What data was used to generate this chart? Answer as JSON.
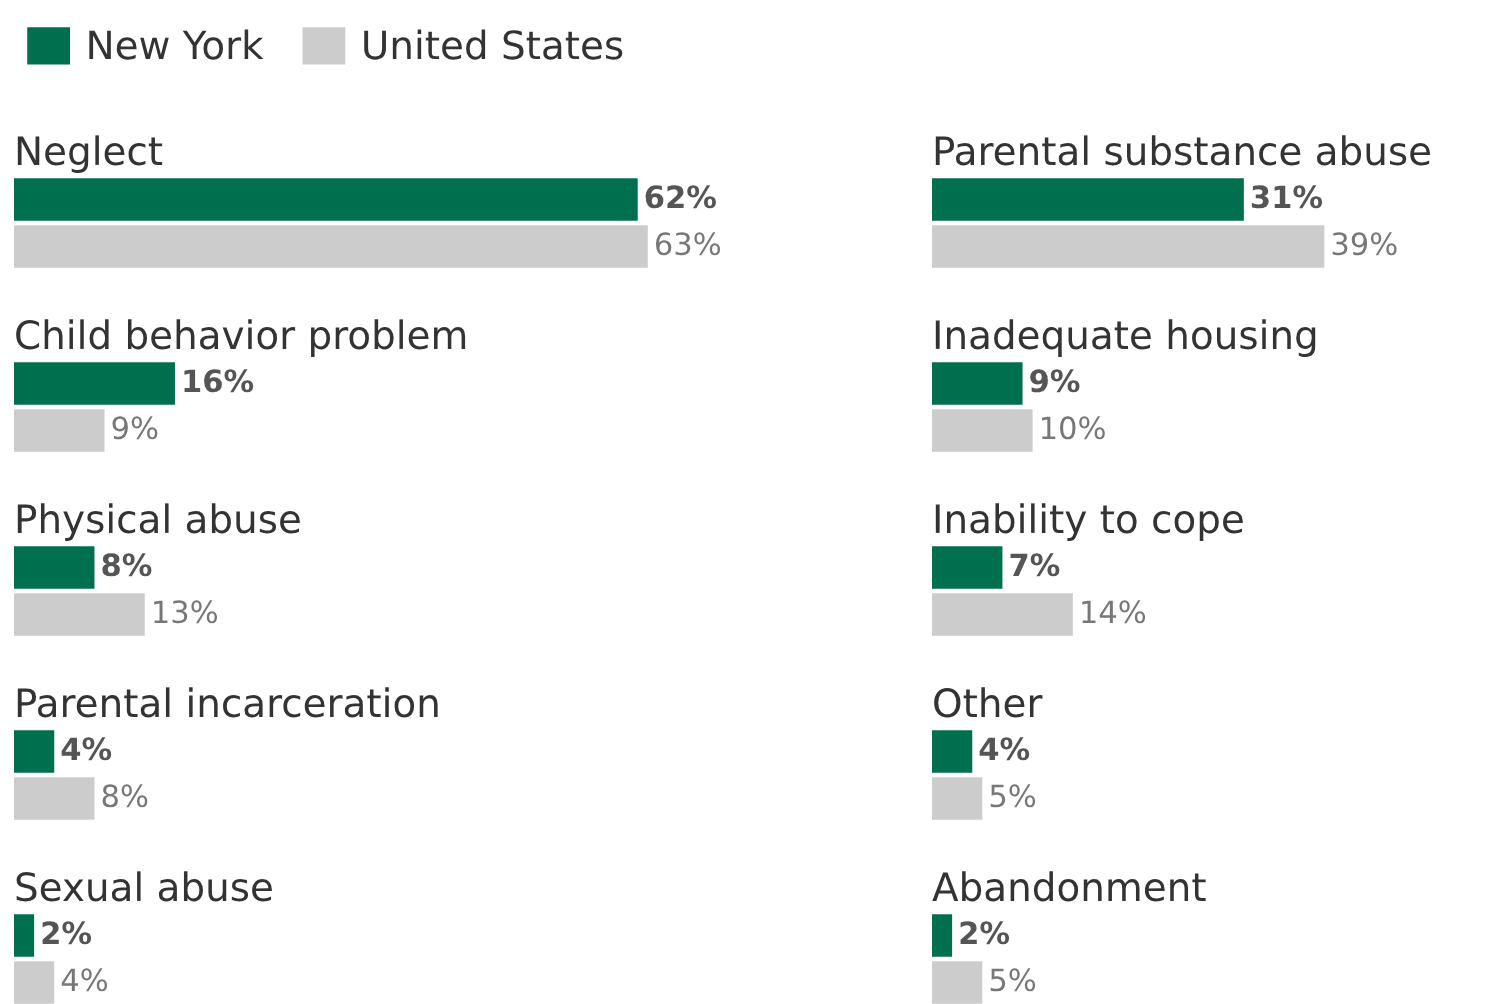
{
  "chart_data": [
    {
      "type": "bar",
      "orientation": "horizontal",
      "title": "Neglect",
      "legend": "top left",
      "series": [
        {
          "name": "New York",
          "color": "#006f4e",
          "values": [
            62
          ],
          "value_labels": [
            "62%"
          ]
        },
        {
          "name": "United States",
          "color": "#cccccc",
          "values": [
            63
          ],
          "value_labels": [
            "63%"
          ]
        }
      ]
    },
    {
      "type": "bar",
      "orientation": "horizontal",
      "title": "Parental substance abuse",
      "series": [
        {
          "color": "#006f4e",
          "values": [
            31
          ],
          "value_labels": [
            "31%"
          ]
        },
        {
          "color": "#cccccc",
          "values": [
            39
          ],
          "value_labels": [
            "39%"
          ]
        }
      ]
    },
    {
      "type": "bar",
      "orientation": "horizontal",
      "title": "Child behavior problem",
      "series": [
        {
          "color": "#006f4e",
          "values": [
            16
          ],
          "value_labels": [
            "16%"
          ]
        },
        {
          "color": "#cccccc",
          "values": [
            9
          ],
          "value_labels": [
            "9%"
          ]
        }
      ]
    },
    {
      "type": "bar",
      "orientation": "horizontal",
      "title": "Inadequate housing",
      "series": [
        {
          "color": "#006f4e",
          "values": [
            9
          ],
          "value_labels": [
            "9%"
          ]
        },
        {
          "color": "#cccccc",
          "values": [
            10
          ],
          "value_labels": [
            "10%"
          ]
        }
      ]
    },
    {
      "type": "bar",
      "orientation": "horizontal",
      "title": "Physical abuse",
      "series": [
        {
          "color": "#006f4e",
          "values": [
            8
          ],
          "value_labels": [
            "8%"
          ]
        },
        {
          "color": "#cccccc",
          "values": [
            13
          ],
          "value_labels": [
            "13%"
          ]
        }
      ]
    },
    {
      "type": "bar",
      "orientation": "horizontal",
      "title": "Inability to cope",
      "series": [
        {
          "color": "#006f4e",
          "values": [
            7
          ],
          "value_labels": [
            "7%"
          ]
        },
        {
          "color": "#cccccc",
          "values": [
            14
          ],
          "value_labels": [
            "14%"
          ]
        }
      ]
    },
    {
      "type": "bar",
      "orientation": "horizontal",
      "title": "Parental incarceration",
      "series": [
        {
          "color": "#006f4e",
          "values": [
            4
          ],
          "value_labels": [
            "4%"
          ]
        },
        {
          "color": "#cccccc",
          "values": [
            8
          ],
          "value_labels": [
            "8%"
          ]
        }
      ]
    },
    {
      "type": "bar",
      "orientation": "horizontal",
      "title": "Other",
      "series": [
        {
          "color": "#006f4e",
          "values": [
            4
          ],
          "value_labels": [
            "4%"
          ]
        },
        {
          "color": "#cccccc",
          "values": [
            5
          ],
          "value_labels": [
            "5%"
          ]
        }
      ]
    },
    {
      "type": "bar",
      "orientation": "horizontal",
      "title": "Sexual abuse",
      "series": [
        {
          "color": "#006f4e",
          "values": [
            2
          ],
          "value_labels": [
            "2%"
          ]
        },
        {
          "color": "#cccccc",
          "values": [
            4
          ],
          "value_labels": [
            "4%"
          ]
        }
      ]
    },
    {
      "type": "bar",
      "orientation": "horizontal",
      "title": "Abandonment",
      "series": [
        {
          "color": "#006f4e",
          "values": [
            2
          ],
          "value_labels": [
            "2%"
          ]
        },
        {
          "color": "#cccccc",
          "values": [
            5
          ],
          "value_labels": [
            "5%"
          ]
        }
      ]
    }
  ]
}
